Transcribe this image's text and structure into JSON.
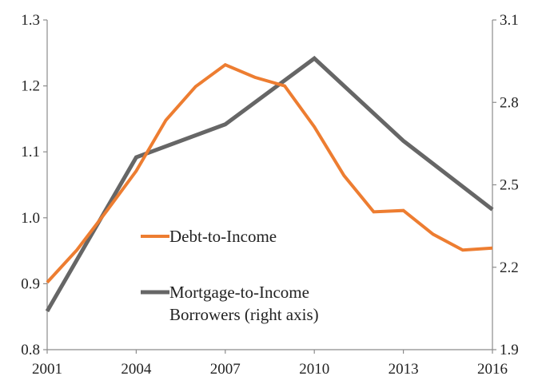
{
  "chart_data": {
    "type": "line",
    "x": [
      2001,
      2002,
      2003,
      2004,
      2005,
      2006,
      2007,
      2008,
      2009,
      2010,
      2011,
      2012,
      2013,
      2014,
      2015,
      2016
    ],
    "x_ticks": [
      "2001",
      "2004",
      "2007",
      "2010",
      "2013",
      "2016"
    ],
    "xlim": [
      2001,
      2016
    ],
    "y_left": {
      "ylim": [
        0.8,
        1.3
      ],
      "ticks": [
        "0.8",
        "0.9",
        "1.0",
        "1.1",
        "1.2",
        "1.3"
      ]
    },
    "y_right": {
      "ylim": [
        1.9,
        3.1
      ],
      "ticks": [
        "1.9",
        "2.2",
        "2.5",
        "2.8",
        "3.1"
      ]
    },
    "grid": false,
    "series": [
      {
        "name": "Debt-to-Income",
        "axis": "left",
        "color": "#ED7D31",
        "x": [
          2001,
          2002,
          2003,
          2004,
          2005,
          2006,
          2007,
          2008,
          2009,
          2010,
          2011,
          2012,
          2013,
          2014,
          2015,
          2016
        ],
        "values": [
          0.902,
          0.951,
          1.01,
          1.071,
          1.148,
          1.199,
          1.232,
          1.213,
          1.2,
          1.138,
          1.064,
          1.009,
          1.011,
          0.975,
          0.951,
          0.954
        ]
      },
      {
        "name_lines": [
          "Mortgage-to-Income",
          "Borrowers (right axis)"
        ],
        "axis": "right",
        "color": "#666666",
        "x": [
          2001,
          2004,
          2007,
          2010,
          2013,
          2016
        ],
        "values": [
          2.04,
          2.6,
          2.72,
          2.96,
          2.66,
          2.41
        ]
      }
    ],
    "legend": {
      "placement": "center-left",
      "entries": [
        {
          "lines": [
            "Debt-to-Income"
          ]
        },
        {
          "lines": [
            "Mortgage-to-Income",
            "Borrowers (right axis)"
          ]
        }
      ]
    }
  }
}
